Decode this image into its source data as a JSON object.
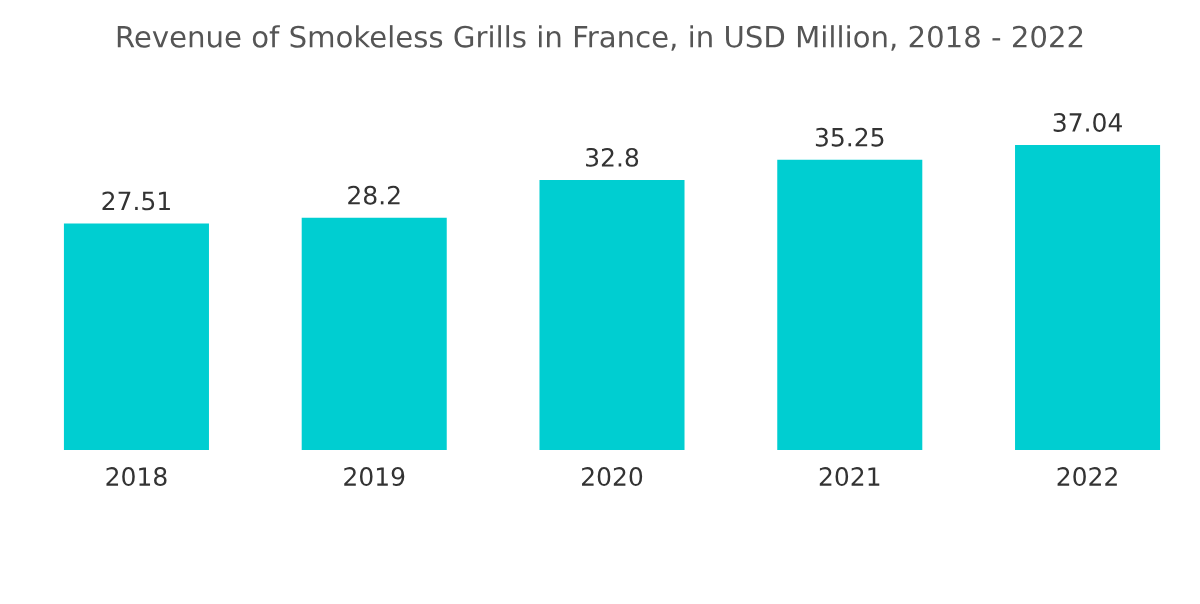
{
  "chart_data": {
    "type": "bar",
    "title": "Revenue of Smokeless Grills in France, in USD Million, 2018 - 2022",
    "categories": [
      "2018",
      "2019",
      "2020",
      "2021",
      "2022"
    ],
    "values": [
      27.51,
      28.2,
      32.8,
      35.25,
      37.04
    ],
    "color": "#00ced1",
    "data_labels": true,
    "grid": false,
    "legend": false
  }
}
